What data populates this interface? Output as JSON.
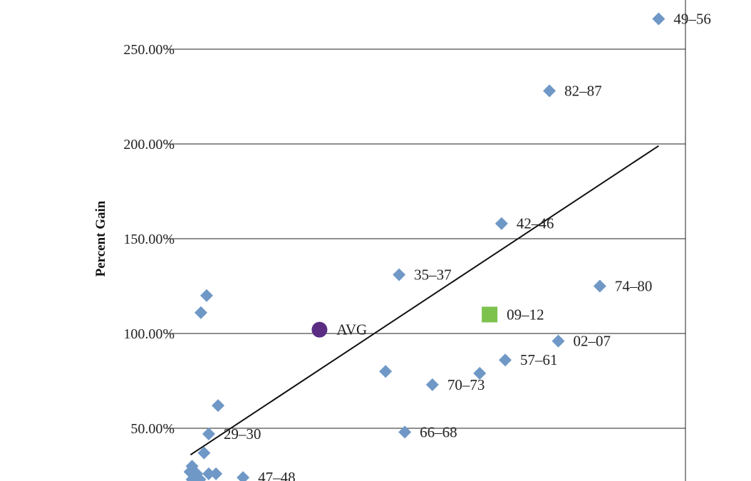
{
  "chart_data": {
    "type": "scatter",
    "title": "",
    "xlabel": "",
    "ylabel": "Percent Gain",
    "x_range": [
      0,
      10
    ],
    "ylim": [
      0,
      2.7
    ],
    "y_ticks": [
      {
        "value": 0.5,
        "label": "50.00%"
      },
      {
        "value": 1.0,
        "label": "100.00%"
      },
      {
        "value": 1.5,
        "label": "150.00%"
      },
      {
        "value": 2.0,
        "label": "200.00%"
      },
      {
        "value": 2.5,
        "label": "250.00%"
      }
    ],
    "grid": true,
    "colors": {
      "points": "#6f98c7",
      "avg": "#5a2d82",
      "current": "#7ec24e",
      "trend": "#111111",
      "grid": "#222222"
    },
    "trendline": {
      "x": [
        0.06,
        9.06
      ],
      "y": [
        0.36,
        1.99
      ]
    },
    "points": [
      {
        "label": "49–56",
        "x": 9.06,
        "y": 2.66
      },
      {
        "label": "82–87",
        "x": 6.96,
        "y": 2.28
      },
      {
        "label": "42–46",
        "x": 6.04,
        "y": 1.58
      },
      {
        "label": "35–37",
        "x": 4.07,
        "y": 1.31
      },
      {
        "label": "74–80",
        "x": 7.93,
        "y": 1.25
      },
      {
        "label": "",
        "x": 0.37,
        "y": 1.2
      },
      {
        "label": "",
        "x": 0.26,
        "y": 1.11
      },
      {
        "label": "02–07",
        "x": 7.13,
        "y": 0.96
      },
      {
        "label": "57–61",
        "x": 6.11,
        "y": 0.86
      },
      {
        "label": "",
        "x": 3.81,
        "y": 0.8
      },
      {
        "label": "",
        "x": 5.62,
        "y": 0.79
      },
      {
        "label": "70–73",
        "x": 4.71,
        "y": 0.73
      },
      {
        "label": "",
        "x": 0.59,
        "y": 0.62
      },
      {
        "label": "66–68",
        "x": 4.18,
        "y": 0.48
      },
      {
        "label": "29–30",
        "x": 0.41,
        "y": 0.47
      },
      {
        "label": "",
        "x": 0.32,
        "y": 0.37
      },
      {
        "label": "",
        "x": 0.09,
        "y": 0.3
      },
      {
        "label": "",
        "x": 0.05,
        "y": 0.27
      },
      {
        "label": "",
        "x": 0.18,
        "y": 0.26
      },
      {
        "label": "",
        "x": 0.41,
        "y": 0.26
      },
      {
        "label": "",
        "x": 0.55,
        "y": 0.26
      },
      {
        "label": "",
        "x": 0.09,
        "y": 0.23
      },
      {
        "label": "",
        "x": 0.24,
        "y": 0.23
      },
      {
        "label": "47–48",
        "x": 1.07,
        "y": 0.24
      }
    ],
    "avg_point": {
      "label": "AVG",
      "x": 2.54,
      "y": 1.02
    },
    "current_point": {
      "label": "09–12",
      "x": 5.81,
      "y": 1.1
    }
  }
}
